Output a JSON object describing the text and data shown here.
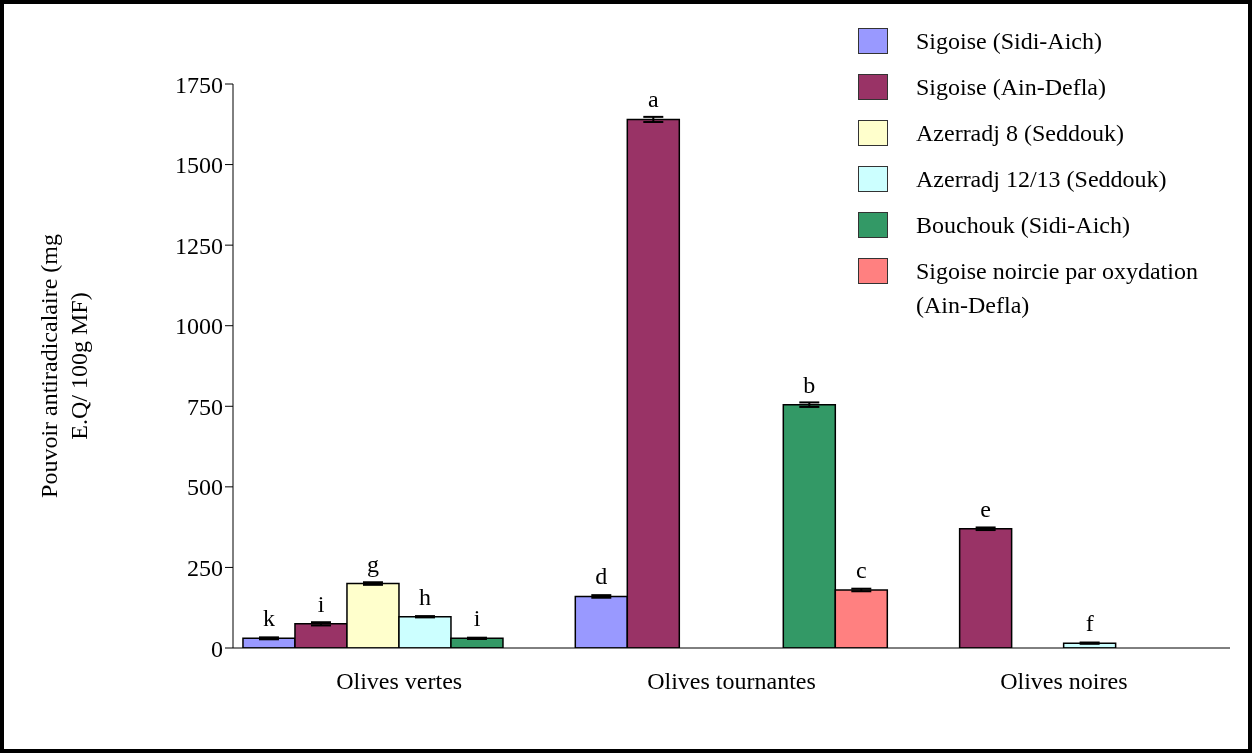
{
  "chart_data": {
    "type": "bar",
    "ylabel": "Pouvoir antiradicalaire (mg E.Q/ 100g MF)",
    "categories": [
      "Olives vertes",
      "Olives tournantes",
      "Olives noires"
    ],
    "ylim": [
      0,
      1750
    ],
    "yticks": [
      0,
      250,
      500,
      750,
      1000,
      1250,
      1500,
      1750
    ],
    "grid": false,
    "legend": "top right",
    "series": [
      {
        "name": "Sigoise (Sidi-Aich)",
        "color": "#9999ff",
        "values": [
          30,
          160,
          null
        ],
        "errors": [
          3,
          4,
          null
        ],
        "value_labels": [
          "k",
          "d",
          null
        ]
      },
      {
        "name": "Sigoise (Ain-Defla)",
        "color": "#993366",
        "values": [
          75,
          1640,
          370
        ],
        "errors": [
          5,
          8,
          4
        ],
        "value_labels": [
          "i",
          "a",
          "e"
        ]
      },
      {
        "name": "Azerradj 8 (Seddouk)",
        "color": "#ffffcc",
        "values": [
          200,
          null,
          null
        ],
        "errors": [
          4,
          null,
          null
        ],
        "value_labels": [
          "g",
          null,
          null
        ]
      },
      {
        "name": "Azerradj 12/13 (Seddouk)",
        "color": "#ccffff",
        "values": [
          97,
          null,
          15
        ],
        "errors": [
          2,
          null,
          2
        ],
        "value_labels": [
          "h",
          null,
          "f"
        ]
      },
      {
        "name": "Bouchouk (Sidi-Aich)",
        "color": "#339966",
        "values": [
          30,
          755,
          null
        ],
        "errors": [
          2,
          7,
          null
        ],
        "value_labels": [
          "i",
          "b",
          null
        ]
      },
      {
        "name": "Sigoise noircie par oxydation (Ain-Defla)",
        "color": "#ff8080",
        "values": [
          null,
          180,
          null
        ],
        "errors": [
          null,
          4,
          null
        ],
        "value_labels": [
          null,
          "c",
          null
        ]
      }
    ]
  }
}
